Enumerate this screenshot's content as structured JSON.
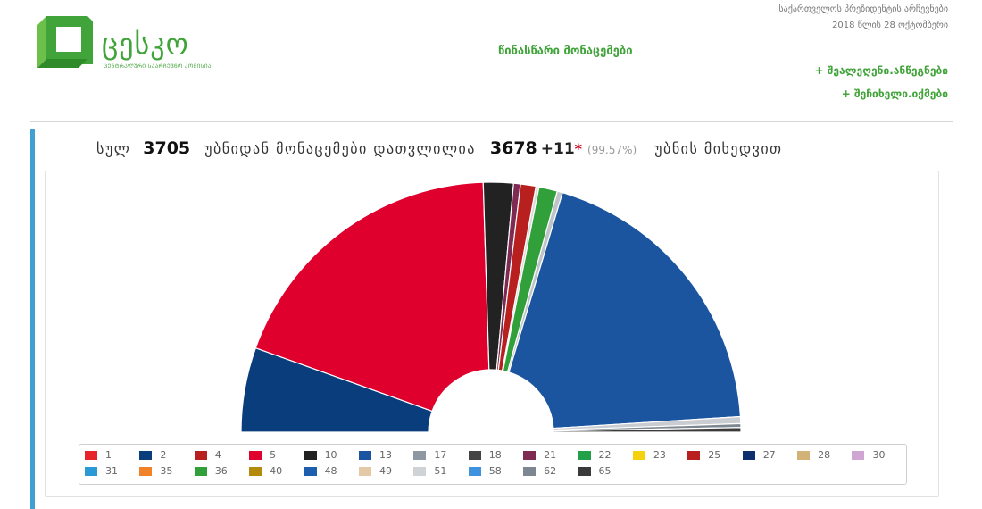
{
  "brand": {
    "name": "ცესკო",
    "subtitle": "ᲪᲔᲜᲢᲠᲐᲚᲣᲠᲘ ᲡᲐᲐᲠᲩᲔᲕᲜᲝ ᲙᲝᲛᲘᲡᲘᲐ",
    "logo_color": "#41a43a"
  },
  "header": {
    "page_title": "წინასწარი მონაცემები",
    "election_title": "საქართველოს პრეზიდენტის არჩევნები",
    "election_date": "2018 წლის 28 ოქტომბერი",
    "links": [
      "+ შეალეღენი.ანწეგნები",
      "+ შეჩიხელი.იქმები"
    ]
  },
  "summary": {
    "prefix": "სულ",
    "total_stations": "3705",
    "middle_text": "უბნიდან მონაცემები დათვლილია",
    "counted_stations": "3678",
    "extra": "+11",
    "extra_mark": "*",
    "percent": "(99.57%)",
    "suffix": "უბნის მიხედვით"
  },
  "chart_data": {
    "type": "pie",
    "shape": "semicircle-donut",
    "series": [
      {
        "name": "2",
        "value": 11.0,
        "color": "#0a3d7c"
      },
      {
        "name": "5",
        "value": 38.3,
        "color": "#e0002d"
      },
      {
        "name": "10",
        "value": 3.9,
        "color": "#222222"
      },
      {
        "name": "21",
        "value": 0.9,
        "color": "#7e2a52"
      },
      {
        "name": "25",
        "value": 2.0,
        "color": "#b7201e"
      },
      {
        "name": "49",
        "value": 0.4,
        "color": "#d9d9d9"
      },
      {
        "name": "36",
        "value": 2.4,
        "color": "#31a03a"
      },
      {
        "name": "51",
        "value": 0.7,
        "color": "#bfc4c9"
      },
      {
        "name": "13",
        "value": 39.0,
        "color": "#1b55a0"
      },
      {
        "name": "17",
        "value": 0.9,
        "color": "#c9ccd1"
      },
      {
        "name": "62",
        "value": 0.5,
        "color": "#7d8791"
      },
      {
        "name": "65",
        "value": 0.6,
        "color": "#3a3a3a"
      }
    ],
    "legend": [
      {
        "label": "1",
        "color": "#e8242b"
      },
      {
        "label": "2",
        "color": "#0a3d7c"
      },
      {
        "label": "4",
        "color": "#b7201e"
      },
      {
        "label": "5",
        "color": "#e0002d"
      },
      {
        "label": "10",
        "color": "#222222"
      },
      {
        "label": "13",
        "color": "#1b55a0"
      },
      {
        "label": "17",
        "color": "#8e98a3"
      },
      {
        "label": "18",
        "color": "#444444"
      },
      {
        "label": "21",
        "color": "#7e2a52"
      },
      {
        "label": "22",
        "color": "#22a149"
      },
      {
        "label": "23",
        "color": "#f5d10e"
      },
      {
        "label": "25",
        "color": "#b7201e"
      },
      {
        "label": "27",
        "color": "#0d2f6e"
      },
      {
        "label": "28",
        "color": "#d2b276"
      },
      {
        "label": "30",
        "color": "#cfa6d3"
      },
      {
        "label": "31",
        "color": "#2a9ad6"
      },
      {
        "label": "35",
        "color": "#f0832a"
      },
      {
        "label": "36",
        "color": "#31a03a"
      },
      {
        "label": "40",
        "color": "#b38a0c"
      },
      {
        "label": "48",
        "color": "#1e5eae"
      },
      {
        "label": "49",
        "color": "#e4c9a6"
      },
      {
        "label": "51",
        "color": "#cfd3d6"
      },
      {
        "label": "58",
        "color": "#3f92dd"
      },
      {
        "label": "62",
        "color": "#7d8791"
      },
      {
        "label": "65",
        "color": "#3a3a3a"
      }
    ]
  }
}
